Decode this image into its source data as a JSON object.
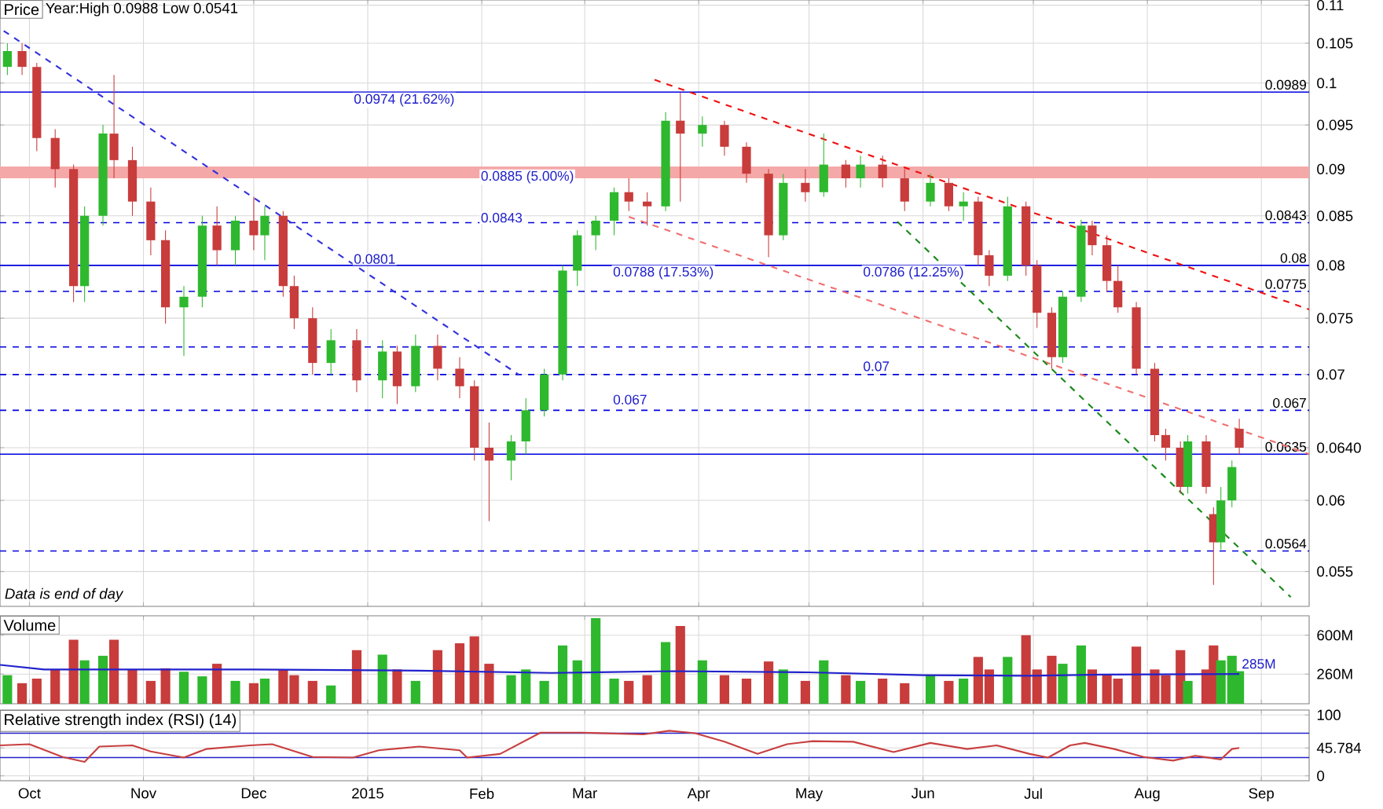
{
  "chart_data": [
    {
      "type": "candlestick",
      "title": "Price",
      "log": true,
      "grid": true,
      "tick_labels": "y",
      "xlim": [
        "2014-09-23",
        "2015-09-14"
      ],
      "ylim": [
        0.0527,
        0.1107
      ],
      "yticks": [
        0.055,
        0.06,
        {
          "value": 0.064,
          "label": "0.0640"
        },
        0.07,
        0.075,
        0.08,
        0.085,
        0.09,
        0.095,
        0.1,
        0.105,
        0.11
      ],
      "x": [
        "2014-09-25",
        "2014-09-29",
        "2014-10-03",
        "2014-10-08",
        "2014-10-13",
        "2014-10-16",
        "2014-10-21",
        "2014-10-24",
        "2014-10-29",
        "2014-11-03",
        "2014-11-07",
        "2014-11-12",
        "2014-11-17",
        "2014-11-21",
        "2014-11-26",
        "2014-12-01",
        "2014-12-04",
        "2014-12-09",
        "2014-12-12",
        "2014-12-17",
        "2014-12-22",
        "2014-12-29",
        "2015-01-05",
        "2015-01-09",
        "2015-01-14",
        "2015-01-20",
        "2015-01-26",
        "2015-01-30",
        "2015-02-03",
        "2015-02-09",
        "2015-02-13",
        "2015-02-18",
        "2015-02-23",
        "2015-02-27",
        "2015-03-04",
        "2015-03-09",
        "2015-03-13",
        "2015-03-18",
        "2015-03-23",
        "2015-03-27",
        "2015-04-02",
        "2015-04-08",
        "2015-04-14",
        "2015-04-20",
        "2015-04-24",
        "2015-04-30",
        "2015-05-05",
        "2015-05-11",
        "2015-05-15",
        "2015-05-21",
        "2015-05-27",
        "2015-06-03",
        "2015-06-08",
        "2015-06-12",
        "2015-06-16",
        "2015-06-19",
        "2015-06-24",
        "2015-06-29",
        "2015-07-02",
        "2015-07-06",
        "2015-07-09",
        "2015-07-14",
        "2015-07-17",
        "2015-07-21",
        "2015-07-24",
        "2015-07-29",
        "2015-08-03",
        "2015-08-06",
        "2015-08-10",
        "2015-08-12",
        "2015-08-17",
        "2015-08-19",
        "2015-08-21",
        "2015-08-24",
        "2015-08-26"
      ],
      "ohlc": [
        [
          0.102,
          0.105,
          0.101,
          0.104
        ],
        [
          0.104,
          0.105,
          0.101,
          0.102
        ],
        [
          0.102,
          0.1025,
          0.092,
          0.0935
        ],
        [
          0.0935,
          0.0945,
          0.088,
          0.09
        ],
        [
          0.09,
          0.0905,
          0.0765,
          0.078
        ],
        [
          0.078,
          0.086,
          0.0765,
          0.085
        ],
        [
          0.085,
          0.095,
          0.084,
          0.094
        ],
        [
          0.094,
          0.101,
          0.089,
          0.091
        ],
        [
          0.091,
          0.0925,
          0.085,
          0.0865
        ],
        [
          0.0865,
          0.088,
          0.081,
          0.0825
        ],
        [
          0.0825,
          0.0835,
          0.0745,
          0.076
        ],
        [
          0.076,
          0.078,
          0.0716,
          0.077
        ],
        [
          0.077,
          0.085,
          0.076,
          0.084
        ],
        [
          0.084,
          0.086,
          0.08,
          0.0815
        ],
        [
          0.0815,
          0.085,
          0.08,
          0.0845
        ],
        [
          0.0845,
          0.087,
          0.0815,
          0.083
        ],
        [
          0.083,
          0.086,
          0.0805,
          0.085
        ],
        [
          0.085,
          0.0855,
          0.077,
          0.078
        ],
        [
          0.078,
          0.079,
          0.074,
          0.075
        ],
        [
          0.075,
          0.076,
          0.07,
          0.071
        ],
        [
          0.071,
          0.074,
          0.07,
          0.073
        ],
        [
          0.073,
          0.074,
          0.0685,
          0.0695
        ],
        [
          0.0695,
          0.073,
          0.068,
          0.072
        ],
        [
          0.072,
          0.0725,
          0.0675,
          0.069
        ],
        [
          0.069,
          0.0735,
          0.0685,
          0.0725
        ],
        [
          0.0725,
          0.0735,
          0.0695,
          0.0705
        ],
        [
          0.0705,
          0.0715,
          0.068,
          0.069
        ],
        [
          0.069,
          0.0695,
          0.063,
          0.064
        ],
        [
          0.064,
          0.066,
          0.0585,
          0.063
        ],
        [
          0.063,
          0.065,
          0.0615,
          0.0645
        ],
        [
          0.0645,
          0.068,
          0.0635,
          0.067
        ],
        [
          0.067,
          0.0705,
          0.0665,
          0.07
        ],
        [
          0.07,
          0.08,
          0.0695,
          0.0795
        ],
        [
          0.0795,
          0.0835,
          0.078,
          0.083
        ],
        [
          0.083,
          0.085,
          0.0815,
          0.0845
        ],
        [
          0.0845,
          0.088,
          0.083,
          0.0875
        ],
        [
          0.0875,
          0.089,
          0.0855,
          0.0865
        ],
        [
          0.0865,
          0.0875,
          0.084,
          0.086
        ],
        [
          0.086,
          0.0965,
          0.0855,
          0.0955
        ],
        [
          0.0955,
          0.0988,
          0.0865,
          0.094
        ],
        [
          0.094,
          0.096,
          0.0925,
          0.095
        ],
        [
          0.095,
          0.0955,
          0.0915,
          0.0925
        ],
        [
          0.0925,
          0.093,
          0.0885,
          0.0895
        ],
        [
          0.0895,
          0.09,
          0.0808,
          0.083
        ],
        [
          0.083,
          0.0895,
          0.0825,
          0.0885
        ],
        [
          0.0885,
          0.09,
          0.0865,
          0.0875
        ],
        [
          0.0875,
          0.094,
          0.087,
          0.0905
        ],
        [
          0.0905,
          0.091,
          0.088,
          0.089
        ],
        [
          0.089,
          0.0915,
          0.088,
          0.0905
        ],
        [
          0.0905,
          0.0915,
          0.088,
          0.089
        ],
        [
          0.089,
          0.09,
          0.0855,
          0.0865
        ],
        [
          0.0865,
          0.0895,
          0.086,
          0.0885
        ],
        [
          0.0885,
          0.089,
          0.0855,
          0.086
        ],
        [
          0.086,
          0.0875,
          0.0845,
          0.0865
        ],
        [
          0.0865,
          0.087,
          0.08,
          0.081
        ],
        [
          0.081,
          0.0815,
          0.078,
          0.079
        ],
        [
          0.079,
          0.087,
          0.0785,
          0.086
        ],
        [
          0.086,
          0.0865,
          0.079,
          0.08
        ],
        [
          0.08,
          0.0805,
          0.0741,
          0.0755
        ],
        [
          0.0755,
          0.076,
          0.0705,
          0.0715
        ],
        [
          0.0715,
          0.0775,
          0.071,
          0.077
        ],
        [
          0.077,
          0.0846,
          0.0765,
          0.084
        ],
        [
          0.084,
          0.0845,
          0.081,
          0.082
        ],
        [
          0.082,
          0.083,
          0.0775,
          0.0785
        ],
        [
          0.0785,
          0.08,
          0.0755,
          0.076
        ],
        [
          0.076,
          0.0765,
          0.07,
          0.0705
        ],
        [
          0.0705,
          0.071,
          0.0645,
          0.065
        ],
        [
          0.065,
          0.0655,
          0.063,
          0.064
        ],
        [
          0.064,
          0.0645,
          0.0605,
          0.061
        ],
        [
          0.061,
          0.065,
          0.0605,
          0.0645
        ],
        [
          0.0645,
          0.065,
          0.0605,
          0.061
        ],
        [
          0.059,
          0.0595,
          0.0541,
          0.057
        ],
        [
          0.057,
          0.061,
          0.0565,
          0.06
        ],
        [
          0.06,
          0.063,
          0.0595,
          0.0625
        ],
        [
          0.0655,
          0.0663,
          0.0635,
          0.064
        ]
      ],
      "colors": [
        "#2eb82e",
        "#c83c3c",
        "#c83c3c",
        "#c83c3c",
        "#c83c3c",
        "#2eb82e",
        "#2eb82e",
        "#c83c3c",
        "#c83c3c",
        "#c83c3c",
        "#c83c3c",
        "#2eb82e",
        "#2eb82e",
        "#c83c3c",
        "#2eb82e",
        "#c83c3c",
        "#2eb82e",
        "#c83c3c",
        "#c83c3c",
        "#c83c3c",
        "#2eb82e",
        "#c83c3c",
        "#2eb82e",
        "#c83c3c",
        "#2eb82e",
        "#c83c3c",
        "#c83c3c",
        "#c83c3c",
        "#c83c3c",
        "#2eb82e",
        "#2eb82e",
        "#2eb82e",
        "#2eb82e",
        "#2eb82e",
        "#2eb82e",
        "#2eb82e",
        "#c83c3c",
        "#c83c3c",
        "#2eb82e",
        "#c83c3c",
        "#2eb82e",
        "#c83c3c",
        "#c83c3c",
        "#c83c3c",
        "#2eb82e",
        "#c83c3c",
        "#2eb82e",
        "#c83c3c",
        "#2eb82e",
        "#c83c3c",
        "#c83c3c",
        "#2eb82e",
        "#c83c3c",
        "#2eb82e",
        "#c83c3c",
        "#c83c3c",
        "#2eb82e",
        "#c83c3c",
        "#c83c3c",
        "#c83c3c",
        "#2eb82e",
        "#2eb82e",
        "#c83c3c",
        "#c83c3c",
        "#c83c3c",
        "#c83c3c",
        "#c83c3c",
        "#c83c3c",
        "#c83c3c",
        "#2eb82e",
        "#c83c3c",
        "#c83c3c",
        "#2eb82e",
        "#2eb82e",
        "#c83c3c"
      ],
      "series": [
        {
          "type": "line",
          "x": [
            "2015-03-20",
            "2015-09-14"
          ],
          "values": [
            0.1004,
            0.0758
          ],
          "color": "#ee1111",
          "line_style": "dashed"
        },
        {
          "type": "line",
          "x": [
            "2015-03-13",
            "2015-09-14"
          ],
          "values": [
            0.0849,
            0.0635
          ],
          "color": "#f07070",
          "line_style": "dashed"
        },
        {
          "type": "line",
          "x": [
            "2015-05-25",
            "2015-09-09"
          ],
          "values": [
            0.0844,
            0.0533
          ],
          "color": "#1a8a1a",
          "line_style": "dashed"
        },
        {
          "type": "line",
          "x": [
            "2014-09-24",
            "2015-02-11"
          ],
          "values": [
            0.1066,
            0.07
          ],
          "color": "#3333dd",
          "line_style": "dashed"
        }
      ],
      "bands": [
        {
          "axis": "y",
          "from": 0.089,
          "to": 0.0903,
          "color": "#f5a8a8"
        }
      ],
      "ref_lines": [
        {
          "axis": "y",
          "value": 0.0989,
          "label": "0.0989",
          "color": "#0000dd",
          "line_style": "solid"
        },
        {
          "axis": "y",
          "value": 0.0843,
          "label": "0.0843",
          "color": "#0000dd",
          "line_style": "dashed"
        },
        {
          "axis": "y",
          "value": 0.08,
          "label": "0.08",
          "color": "#0000dd",
          "line_style": "solid"
        },
        {
          "axis": "y",
          "value": 0.0775,
          "label": "0.0775",
          "color": "#0000dd",
          "line_style": "dashed"
        },
        {
          "axis": "y",
          "value": 0.0724,
          "color": "#0000dd",
          "line_style": "dashed"
        },
        {
          "axis": "y",
          "value": 0.07,
          "color": "#0000dd",
          "line_style": "dashed"
        },
        {
          "axis": "y",
          "value": 0.067,
          "label": "0.067",
          "color": "#0000dd",
          "line_style": "dashed"
        },
        {
          "axis": "y",
          "value": 0.0635,
          "label": "0.0635",
          "color": "#0000dd",
          "line_style": "solid"
        },
        {
          "axis": "y",
          "value": 0.0564,
          "label": "0.0564",
          "color": "#0000dd",
          "line_style": "dashed"
        }
      ],
      "annotations": [
        "Year:High 0.0988 Low 0.0541",
        "Data is end of day",
        "0.0974 (21.62%)",
        "0.0801",
        "0.0885 (5.00%)",
        "0.0843",
        "0.0788 (17.53%)",
        "0.067",
        "0.0786 (12.25%)",
        "0.07"
      ]
    },
    {
      "type": "bar",
      "title": "Volume",
      "grid": true,
      "tick_labels": "y",
      "xlim": [
        "2014-09-23",
        "2015-09-14"
      ],
      "ylim": [
        0,
        770
      ],
      "yticks": [
        {
          "value": 260,
          "label": "260M"
        },
        {
          "value": 600,
          "label": "600M"
        }
      ],
      "x": [
        "2014-09-25",
        "2014-09-29",
        "2014-10-03",
        "2014-10-08",
        "2014-10-13",
        "2014-10-16",
        "2014-10-21",
        "2014-10-24",
        "2014-10-29",
        "2014-11-03",
        "2014-11-07",
        "2014-11-12",
        "2014-11-17",
        "2014-11-21",
        "2014-11-26",
        "2014-12-01",
        "2014-12-04",
        "2014-12-09",
        "2014-12-12",
        "2014-12-17",
        "2014-12-22",
        "2014-12-29",
        "2015-01-05",
        "2015-01-09",
        "2015-01-14",
        "2015-01-20",
        "2015-01-26",
        "2015-01-30",
        "2015-02-03",
        "2015-02-09",
        "2015-02-13",
        "2015-02-18",
        "2015-02-23",
        "2015-02-27",
        "2015-03-04",
        "2015-03-09",
        "2015-03-13",
        "2015-03-18",
        "2015-03-23",
        "2015-03-27",
        "2015-04-02",
        "2015-04-08",
        "2015-04-14",
        "2015-04-20",
        "2015-04-24",
        "2015-04-30",
        "2015-05-05",
        "2015-05-11",
        "2015-05-15",
        "2015-05-21",
        "2015-05-27",
        "2015-06-03",
        "2015-06-08",
        "2015-06-12",
        "2015-06-16",
        "2015-06-19",
        "2015-06-24",
        "2015-06-29",
        "2015-07-02",
        "2015-07-06",
        "2015-07-09",
        "2015-07-14",
        "2015-07-17",
        "2015-07-21",
        "2015-07-24",
        "2015-07-29",
        "2015-08-03",
        "2015-08-06",
        "2015-08-10",
        "2015-08-12",
        "2015-08-17",
        "2015-08-19",
        "2015-08-21",
        "2015-08-24",
        "2015-08-26"
      ],
      "series": [
        {
          "values": [
            250,
            180,
            220,
            300,
            560,
            380,
            420,
            560,
            300,
            200,
            310,
            280,
            240,
            350,
            200,
            180,
            220,
            300,
            250,
            200,
            160,
            470,
            430,
            300,
            200,
            470,
            530,
            590,
            350,
            250,
            300,
            200,
            510,
            380,
            750,
            220,
            200,
            250,
            540,
            680,
            380,
            250,
            220,
            370,
            300,
            200,
            380,
            250,
            200,
            220,
            180,
            250,
            200,
            220,
            410,
            300,
            410,
            600,
            300,
            420,
            350,
            510,
            300,
            250,
            220,
            500,
            300,
            250,
            470,
            200,
            300,
            510,
            380,
            420,
            285
          ],
          "colors": [
            "#2eb82e",
            "#c83c3c",
            "#c83c3c",
            "#c83c3c",
            "#c83c3c",
            "#2eb82e",
            "#2eb82e",
            "#c83c3c",
            "#c83c3c",
            "#c83c3c",
            "#c83c3c",
            "#2eb82e",
            "#2eb82e",
            "#c83c3c",
            "#2eb82e",
            "#c83c3c",
            "#2eb82e",
            "#c83c3c",
            "#c83c3c",
            "#c83c3c",
            "#2eb82e",
            "#c83c3c",
            "#2eb82e",
            "#c83c3c",
            "#2eb82e",
            "#c83c3c",
            "#c83c3c",
            "#c83c3c",
            "#c83c3c",
            "#2eb82e",
            "#2eb82e",
            "#2eb82e",
            "#2eb82e",
            "#2eb82e",
            "#2eb82e",
            "#2eb82e",
            "#c83c3c",
            "#c83c3c",
            "#2eb82e",
            "#c83c3c",
            "#2eb82e",
            "#c83c3c",
            "#c83c3c",
            "#c83c3c",
            "#2eb82e",
            "#c83c3c",
            "#2eb82e",
            "#c83c3c",
            "#2eb82e",
            "#c83c3c",
            "#c83c3c",
            "#2eb82e",
            "#c83c3c",
            "#2eb82e",
            "#c83c3c",
            "#c83c3c",
            "#2eb82e",
            "#c83c3c",
            "#c83c3c",
            "#c83c3c",
            "#2eb82e",
            "#2eb82e",
            "#c83c3c",
            "#c83c3c",
            "#c83c3c",
            "#c83c3c",
            "#c83c3c",
            "#c83c3c",
            "#c83c3c",
            "#2eb82e",
            "#c83c3c",
            "#c83c3c",
            "#2eb82e",
            "#2eb82e",
            "#2eb82e"
          ]
        },
        {
          "type": "line",
          "x": [
            "2014-09-23",
            "2014-10-05",
            "2014-12-01",
            "2015-01-15",
            "2015-02-20",
            "2015-03-25",
            "2015-05-01",
            "2015-06-01",
            "2015-06-30",
            "2015-07-20",
            "2015-08-26"
          ],
          "values": [
            340,
            300,
            300,
            290,
            270,
            285,
            275,
            250,
            245,
            255,
            260
          ],
          "color": "#2222cc"
        }
      ],
      "annotations": [
        {
          "text": "285M",
          "x": "2015-08-26",
          "y": 285
        }
      ]
    },
    {
      "type": "line",
      "title": "Relative strength index (RSI) (14)",
      "grid": true,
      "xlim": [
        "2014-09-23",
        "2015-09-14"
      ],
      "xticks": [
        {
          "value": "2014-10-01",
          "label": "Oct"
        },
        {
          "value": "2014-11-01",
          "label": "Nov"
        },
        {
          "value": "2014-12-01",
          "label": "Dec"
        },
        {
          "value": "2015-01-01",
          "label": "2015"
        },
        {
          "value": "2015-02-01",
          "label": "Feb"
        },
        {
          "value": "2015-03-01",
          "label": "Mar"
        },
        {
          "value": "2015-04-01",
          "label": "Apr"
        },
        {
          "value": "2015-05-01",
          "label": "May"
        },
        {
          "value": "2015-06-01",
          "label": "Jun"
        },
        {
          "value": "2015-07-01",
          "label": "Jul"
        },
        {
          "value": "2015-08-01",
          "label": "Aug"
        },
        {
          "value": "2015-09-01",
          "label": "Sep"
        }
      ],
      "ylim": [
        -8,
        108
      ],
      "yticks": [
        0,
        {
          "value": 45.784,
          "label": "45.784"
        },
        100
      ],
      "series": [
        {
          "x": [
            "2014-09-23",
            "2014-10-01",
            "2014-10-10",
            "2014-10-16",
            "2014-10-20",
            "2014-10-29",
            "2014-11-03",
            "2014-11-12",
            "2014-11-18",
            "2014-11-30",
            "2014-12-06",
            "2014-12-17",
            "2014-12-28",
            "2015-01-04",
            "2015-01-15",
            "2015-01-26",
            "2015-01-28",
            "2015-02-06",
            "2015-02-17",
            "2015-02-28",
            "2015-03-17",
            "2015-03-24",
            "2015-03-31",
            "2015-04-08",
            "2015-04-17",
            "2015-04-25",
            "2015-05-02",
            "2015-05-13",
            "2015-05-24",
            "2015-06-03",
            "2015-06-13",
            "2015-06-21",
            "2015-06-30",
            "2015-07-05",
            "2015-07-11",
            "2015-07-15",
            "2015-07-23",
            "2015-07-31",
            "2015-08-08",
            "2015-08-14",
            "2015-08-21",
            "2015-08-24",
            "2015-08-26"
          ],
          "values": [
            50,
            52,
            31,
            23,
            48,
            50,
            40,
            30,
            44,
            50,
            52,
            31,
            30,
            42,
            48,
            42,
            30,
            36,
            71,
            71,
            68,
            74,
            70,
            56,
            36,
            52,
            57,
            56,
            39,
            54,
            44,
            50,
            36,
            30,
            50,
            54,
            44,
            31,
            25,
            33,
            27,
            44,
            45.784
          ],
          "color": "#c84040"
        }
      ],
      "ref_lines": [
        {
          "axis": "y",
          "value": 70,
          "color": "#2222cc",
          "line_style": "solid"
        },
        {
          "axis": "y",
          "value": 30,
          "color": "#2222cc",
          "line_style": "solid"
        }
      ]
    }
  ]
}
